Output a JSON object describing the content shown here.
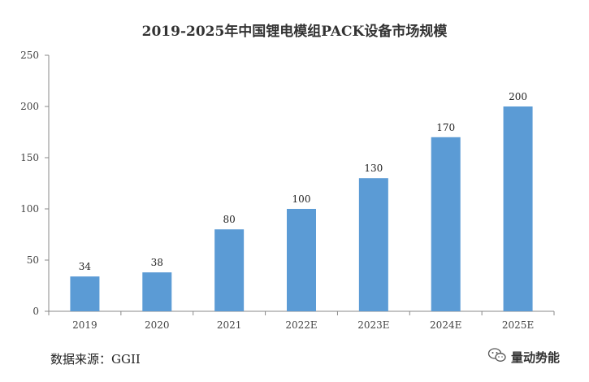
{
  "chart_data": {
    "type": "bar",
    "title": "2019-2025年中国锂电模组PACK设备市场规模",
    "categories": [
      "2019",
      "2020",
      "2021",
      "2022E",
      "2023E",
      "2024E",
      "2025E"
    ],
    "values": [
      34,
      38,
      80,
      100,
      130,
      170,
      200
    ],
    "ylim": [
      0,
      250
    ],
    "yticks": [
      0,
      50,
      100,
      150,
      200,
      250
    ],
    "data_labels": true,
    "grid": false,
    "bar_color": "#5B9BD5"
  },
  "source": "数据来源：GGII",
  "watermark": {
    "text": "量动势能",
    "icon": "wechat-icon"
  }
}
